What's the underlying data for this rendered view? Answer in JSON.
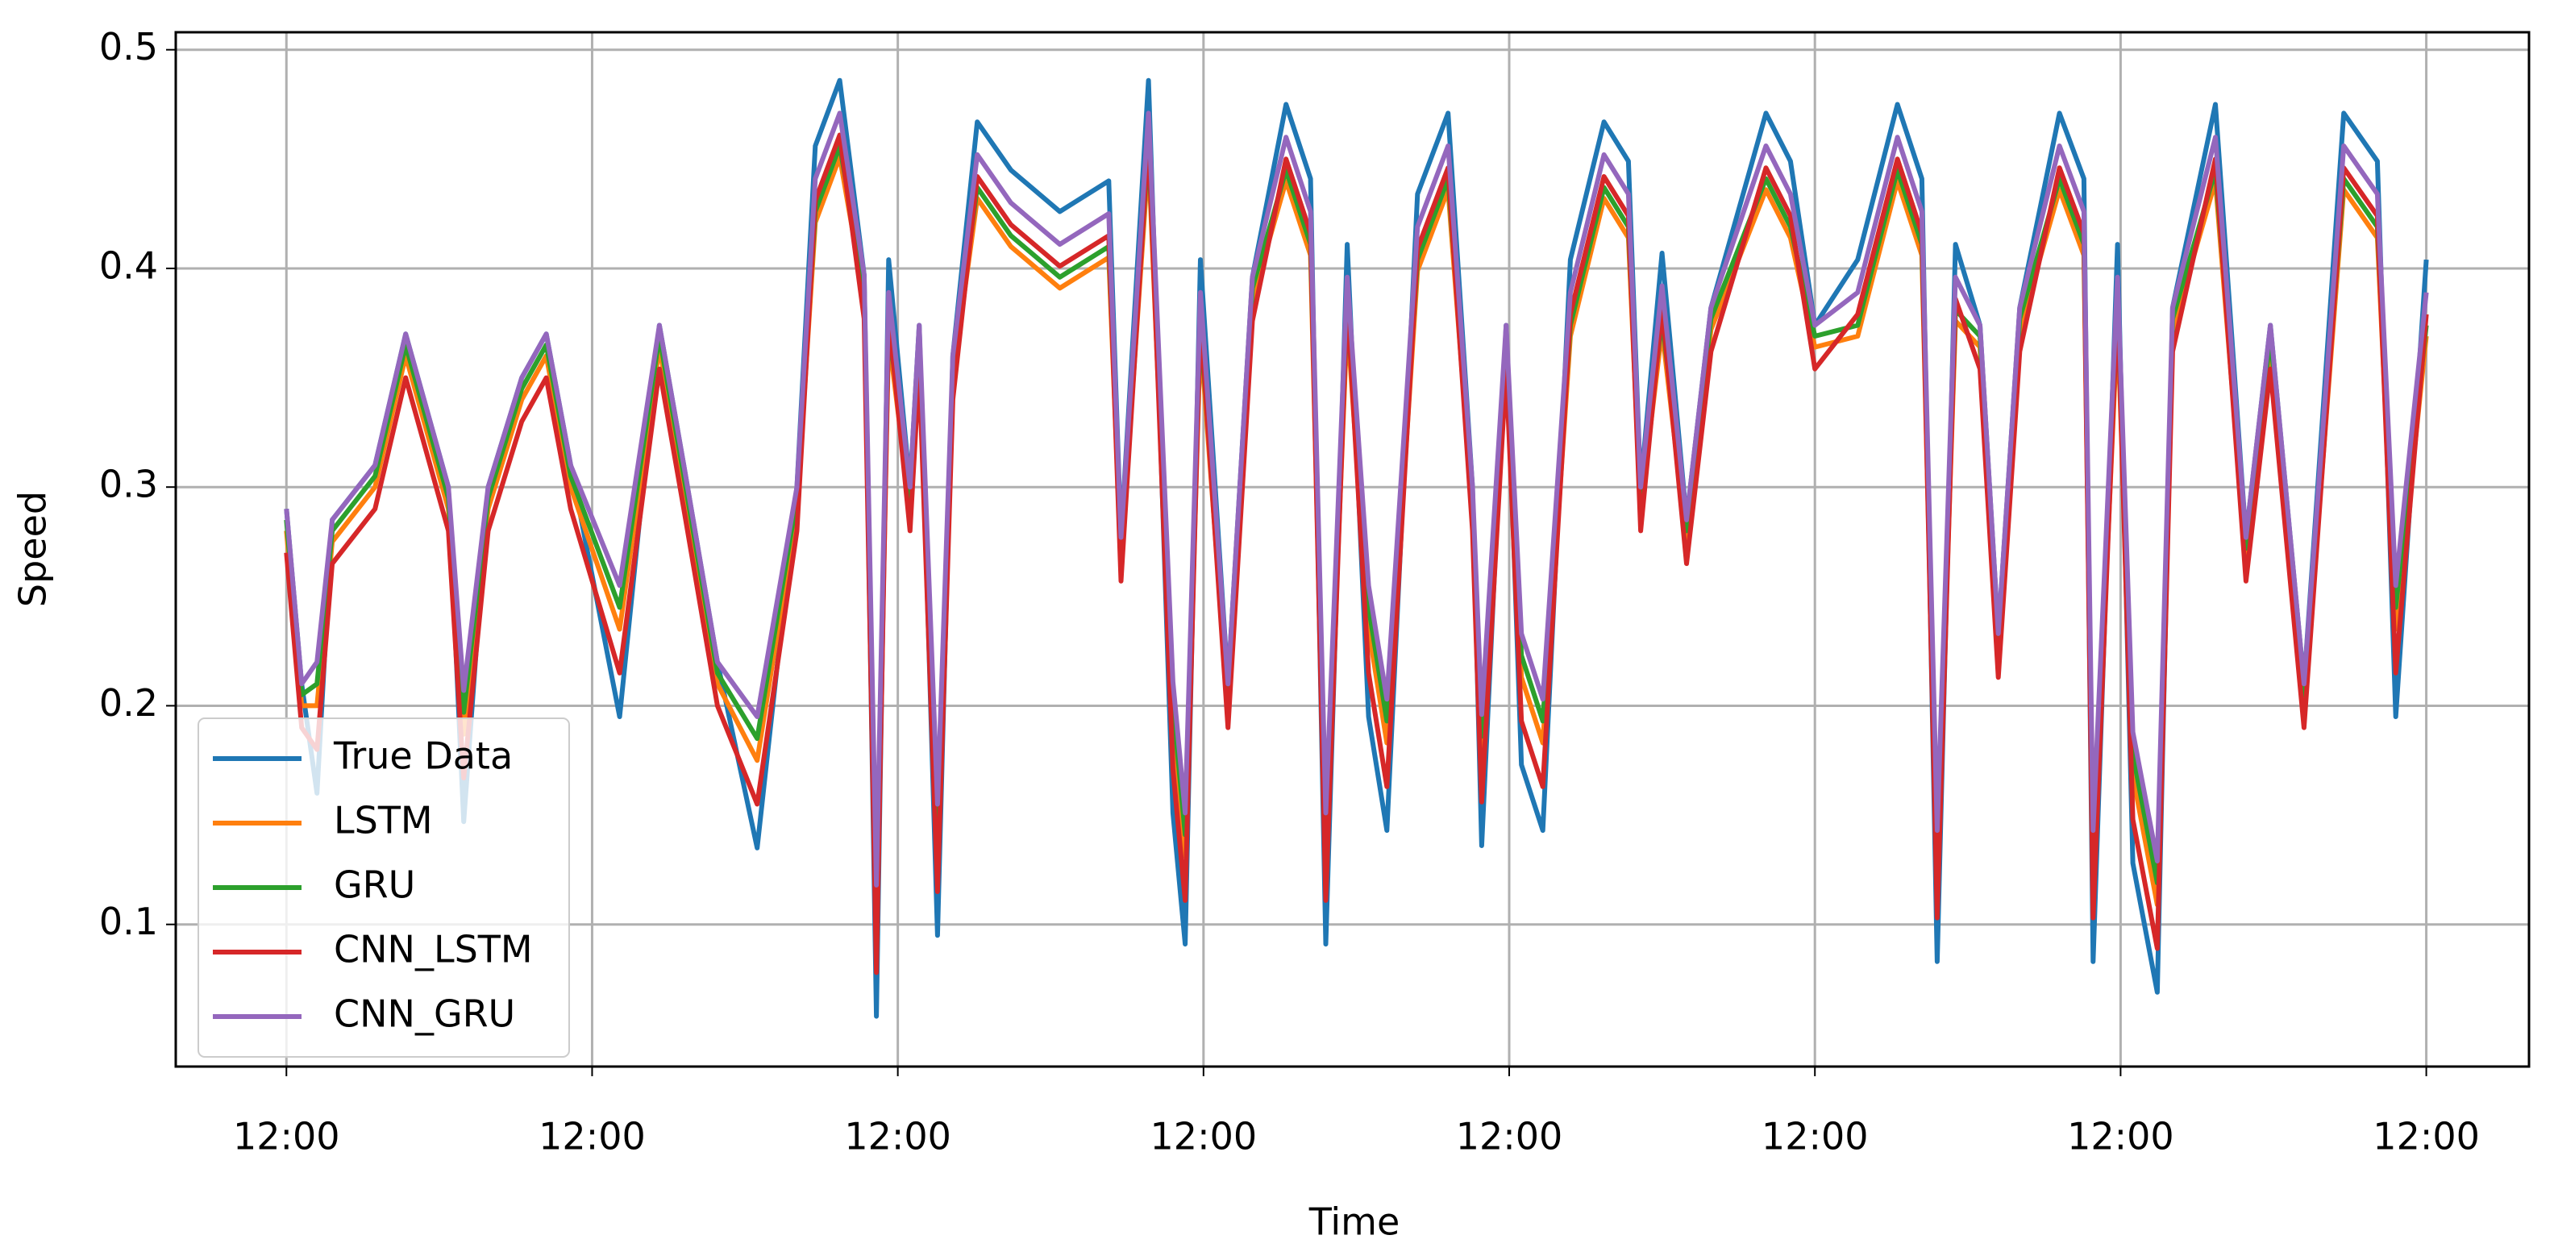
{
  "chart_data": {
    "type": "line",
    "xlabel": "Time",
    "ylabel": "Speed",
    "grid": true,
    "legend": "lower left",
    "xlim": [
      -0.362,
      7.336
    ],
    "xticks": [
      {
        "value": 0,
        "label": "12:00"
      },
      {
        "value": 1,
        "label": "12:00"
      },
      {
        "value": 2,
        "label": "12:00"
      },
      {
        "value": 3,
        "label": "12:00"
      },
      {
        "value": 4,
        "label": "12:00"
      },
      {
        "value": 5,
        "label": "12:00"
      },
      {
        "value": 6,
        "label": "12:00"
      },
      {
        "value": 7,
        "label": "12:00"
      }
    ],
    "ylim": [
      0.035,
      0.508
    ],
    "yticks": [
      0.1,
      0.2,
      0.3,
      0.4,
      0.5
    ],
    "x": [
      0,
      0.05,
      0.1,
      0.15,
      0.29,
      0.39,
      0.53,
      0.58,
      0.66,
      0.77,
      0.85,
      0.93,
      1.09,
      1.22,
      1.3,
      1.41,
      1.54,
      1.67,
      1.73,
      1.81,
      1.89,
      1.93,
      1.97,
      2.04,
      2.07,
      2.13,
      2.18,
      2.26,
      2.37,
      2.53,
      2.69,
      2.73,
      2.82,
      2.9,
      2.94,
      2.99,
      3.08,
      3.16,
      3.27,
      3.35,
      3.4,
      3.47,
      3.54,
      3.6,
      3.7,
      3.8,
      3.88,
      3.91,
      3.99,
      4.04,
      4.11,
      4.2,
      4.31,
      4.39,
      4.43,
      4.5,
      4.58,
      4.66,
      4.84,
      4.92,
      5.0,
      5.14,
      5.27,
      5.35,
      5.4,
      5.46,
      5.54,
      5.6,
      5.67,
      5.8,
      5.88,
      5.91,
      5.99,
      6.04,
      6.12,
      6.17,
      6.31,
      6.41,
      6.49,
      6.6,
      6.73,
      6.84,
      6.9,
      7.0
    ],
    "series": [
      {
        "name": "True Data",
        "color": "#1f77b4",
        "values": [
          0.29,
          0.21,
          0.16,
          0.285,
          0.31,
          0.37,
          0.3,
          0.147,
          0.3,
          0.35,
          0.37,
          0.31,
          0.195,
          0.374,
          0.31,
          0.22,
          0.135,
          0.3,
          0.456,
          0.486,
          0.397,
          0.058,
          0.404,
          0.3,
          0.374,
          0.095,
          0.36,
          0.467,
          0.445,
          0.426,
          0.44,
          0.277,
          0.486,
          0.151,
          0.091,
          0.404,
          0.21,
          0.396,
          0.475,
          0.441,
          0.091,
          0.411,
          0.195,
          0.143,
          0.434,
          0.471,
          0.3,
          0.136,
          0.374,
          0.173,
          0.143,
          0.404,
          0.467,
          0.449,
          0.3,
          0.407,
          0.285,
          0.382,
          0.471,
          0.449,
          0.374,
          0.404,
          0.475,
          0.441,
          0.083,
          0.411,
          0.374,
          0.233,
          0.382,
          0.471,
          0.441,
          0.083,
          0.411,
          0.128,
          0.069,
          0.382,
          0.475,
          0.277,
          0.374,
          0.21,
          0.471,
          0.449,
          0.195,
          0.404
        ]
      },
      {
        "name": "LSTM",
        "color": "#ff7f0e",
        "values": [
          0.28,
          0.2,
          0.2,
          0.275,
          0.3,
          0.36,
          0.29,
          0.187,
          0.29,
          0.34,
          0.36,
          0.3,
          0.235,
          0.364,
          0.3,
          0.21,
          0.175,
          0.29,
          0.421,
          0.451,
          0.387,
          0.098,
          0.369,
          0.29,
          0.364,
          0.135,
          0.35,
          0.432,
          0.41,
          0.391,
          0.405,
          0.267,
          0.451,
          0.191,
          0.131,
          0.369,
          0.2,
          0.386,
          0.44,
          0.406,
          0.131,
          0.376,
          0.235,
          0.183,
          0.399,
          0.436,
          0.29,
          0.176,
          0.364,
          0.213,
          0.183,
          0.369,
          0.432,
          0.414,
          0.29,
          0.372,
          0.275,
          0.372,
          0.436,
          0.414,
          0.364,
          0.369,
          0.44,
          0.406,
          0.123,
          0.376,
          0.364,
          0.223,
          0.372,
          0.436,
          0.406,
          0.123,
          0.376,
          0.168,
          0.109,
          0.372,
          0.44,
          0.267,
          0.364,
          0.2,
          0.436,
          0.414,
          0.235,
          0.369
        ]
      },
      {
        "name": "GRU",
        "color": "#2ca02c",
        "values": [
          0.285,
          0.205,
          0.21,
          0.28,
          0.305,
          0.365,
          0.295,
          0.197,
          0.295,
          0.345,
          0.365,
          0.305,
          0.245,
          0.369,
          0.305,
          0.215,
          0.185,
          0.295,
          0.426,
          0.456,
          0.392,
          0.108,
          0.374,
          0.295,
          0.369,
          0.145,
          0.355,
          0.437,
          0.415,
          0.396,
          0.41,
          0.272,
          0.456,
          0.201,
          0.141,
          0.374,
          0.205,
          0.391,
          0.445,
          0.411,
          0.141,
          0.381,
          0.245,
          0.193,
          0.404,
          0.441,
          0.295,
          0.186,
          0.369,
          0.223,
          0.193,
          0.374,
          0.437,
          0.419,
          0.295,
          0.377,
          0.28,
          0.377,
          0.441,
          0.419,
          0.369,
          0.374,
          0.445,
          0.411,
          0.133,
          0.381,
          0.369,
          0.228,
          0.377,
          0.441,
          0.411,
          0.133,
          0.381,
          0.178,
          0.119,
          0.377,
          0.445,
          0.272,
          0.369,
          0.205,
          0.441,
          0.419,
          0.245,
          0.374
        ]
      },
      {
        "name": "CNN_LSTM",
        "color": "#d62728",
        "values": [
          0.27,
          0.19,
          0.18,
          0.265,
          0.29,
          0.35,
          0.28,
          0.167,
          0.28,
          0.33,
          0.35,
          0.29,
          0.215,
          0.354,
          0.29,
          0.2,
          0.155,
          0.28,
          0.431,
          0.461,
          0.377,
          0.078,
          0.379,
          0.28,
          0.354,
          0.115,
          0.34,
          0.442,
          0.42,
          0.401,
          0.415,
          0.257,
          0.461,
          0.171,
          0.111,
          0.379,
          0.19,
          0.376,
          0.45,
          0.416,
          0.111,
          0.386,
          0.215,
          0.163,
          0.409,
          0.446,
          0.28,
          0.156,
          0.354,
          0.193,
          0.163,
          0.379,
          0.442,
          0.424,
          0.28,
          0.382,
          0.265,
          0.362,
          0.446,
          0.424,
          0.354,
          0.379,
          0.45,
          0.416,
          0.103,
          0.386,
          0.354,
          0.213,
          0.362,
          0.446,
          0.416,
          0.103,
          0.386,
          0.148,
          0.089,
          0.362,
          0.45,
          0.257,
          0.354,
          0.19,
          0.446,
          0.424,
          0.215,
          0.379
        ]
      },
      {
        "name": "CNN_GRU",
        "color": "#9467bd",
        "values": [
          0.29,
          0.21,
          0.22,
          0.285,
          0.31,
          0.37,
          0.3,
          0.207,
          0.3,
          0.35,
          0.37,
          0.31,
          0.255,
          0.374,
          0.31,
          0.22,
          0.195,
          0.3,
          0.441,
          0.471,
          0.397,
          0.118,
          0.389,
          0.3,
          0.374,
          0.155,
          0.36,
          0.452,
          0.43,
          0.411,
          0.425,
          0.277,
          0.471,
          0.211,
          0.151,
          0.389,
          0.21,
          0.396,
          0.46,
          0.426,
          0.151,
          0.396,
          0.255,
          0.203,
          0.419,
          0.456,
          0.3,
          0.196,
          0.374,
          0.233,
          0.203,
          0.389,
          0.452,
          0.434,
          0.3,
          0.392,
          0.285,
          0.382,
          0.456,
          0.434,
          0.374,
          0.389,
          0.46,
          0.426,
          0.143,
          0.396,
          0.374,
          0.233,
          0.382,
          0.456,
          0.426,
          0.143,
          0.396,
          0.188,
          0.129,
          0.382,
          0.46,
          0.277,
          0.374,
          0.21,
          0.456,
          0.434,
          0.255,
          0.389
        ]
      }
    ]
  }
}
